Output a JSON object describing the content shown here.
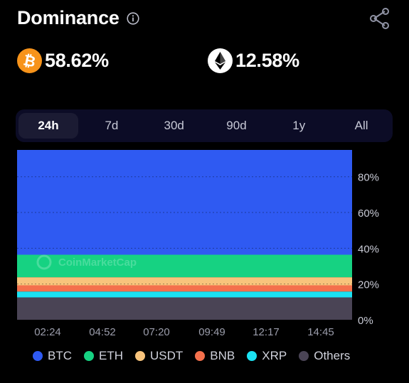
{
  "header": {
    "title": "Dominance"
  },
  "dominance": {
    "btc_value": "58.62%",
    "eth_value": "12.58%"
  },
  "tabs": [
    {
      "label": "24h",
      "active": true
    },
    {
      "label": "7d",
      "active": false
    },
    {
      "label": "30d",
      "active": false
    },
    {
      "label": "90d",
      "active": false
    },
    {
      "label": "1y",
      "active": false
    },
    {
      "label": "All",
      "active": false
    }
  ],
  "colors": {
    "btc": "#2f5af2",
    "eth": "#16d282",
    "usdt": "#f8c47c",
    "bnb": "#f4704c",
    "xrp": "#1be2f2",
    "others": "#4a4455",
    "btc_logo": "#f7931a"
  },
  "watermark": "CoinMarketCap",
  "chart_data": {
    "type": "area",
    "stacked": true,
    "x": [
      "02:24",
      "04:52",
      "07:20",
      "09:49",
      "12:17",
      "14:45"
    ],
    "yticks": [
      "80%",
      "60%",
      "40%",
      "20%",
      "0%"
    ],
    "ylim": [
      0,
      95
    ],
    "grid": true,
    "legend_position": "bottom",
    "series": [
      {
        "name": "BTC",
        "values": [
          58.62,
          58.62,
          58.62,
          58.62,
          58.62,
          58.62
        ]
      },
      {
        "name": "ETH",
        "values": [
          12.58,
          12.58,
          12.58,
          12.58,
          12.58,
          12.58
        ]
      },
      {
        "name": "USDT",
        "values": [
          4.5,
          4.5,
          4.5,
          4.5,
          4.5,
          4.5
        ]
      },
      {
        "name": "BNB",
        "values": [
          3.5,
          3.5,
          3.5,
          3.5,
          3.5,
          3.5
        ]
      },
      {
        "name": "XRP",
        "values": [
          3.3,
          3.3,
          3.3,
          3.3,
          3.3,
          3.3
        ]
      },
      {
        "name": "Others",
        "values": [
          12.5,
          12.5,
          12.5,
          12.5,
          12.5,
          12.5
        ]
      }
    ]
  }
}
